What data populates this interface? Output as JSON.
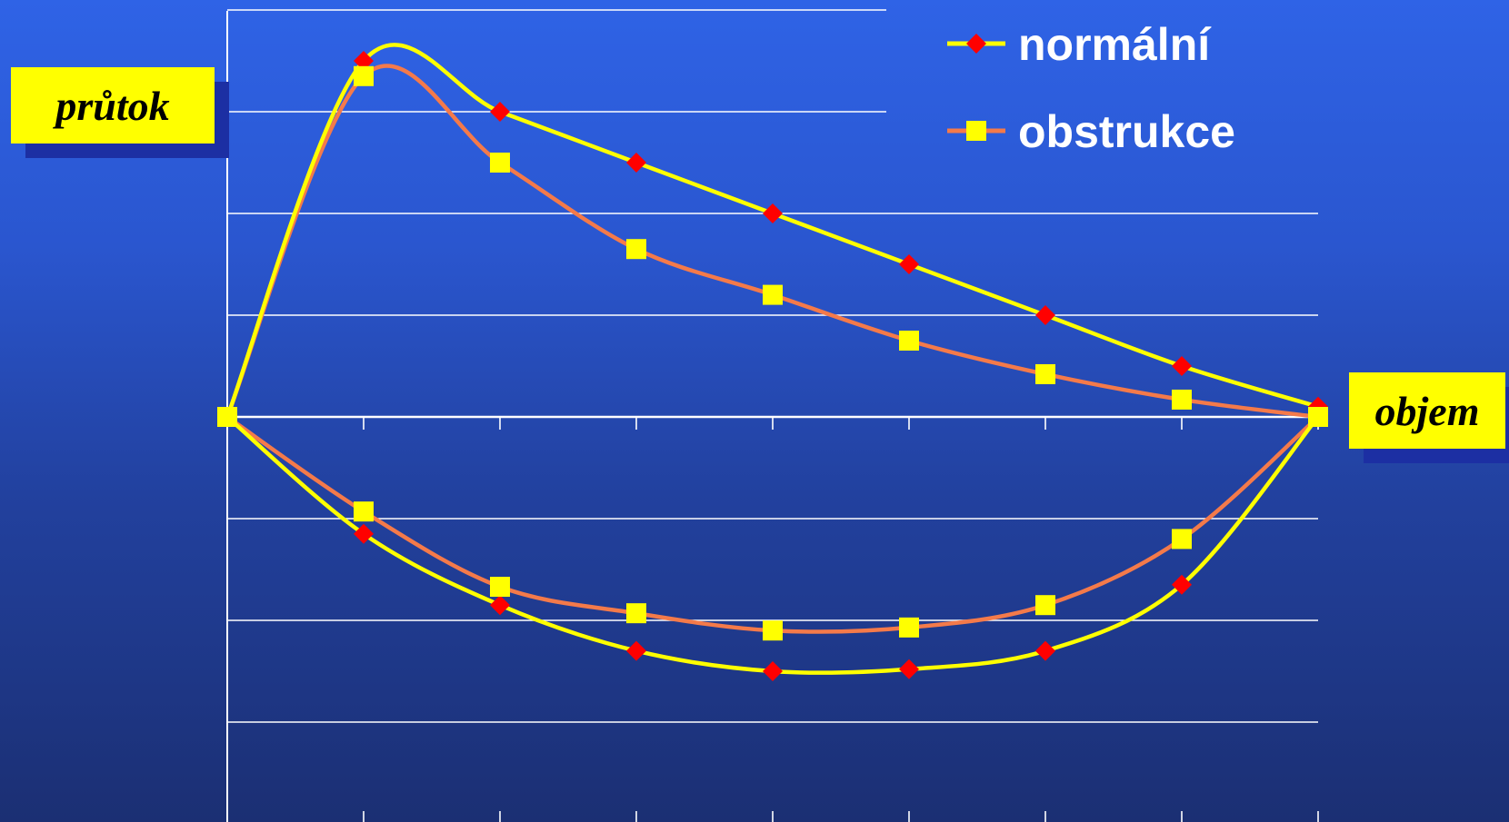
{
  "chart_data": {
    "type": "line",
    "xlabel": "objem",
    "ylabel": "průtok",
    "xlim": [
      0,
      8
    ],
    "ylim": [
      -4,
      4
    ],
    "grid": true,
    "legend": "top-right",
    "series": [
      {
        "name": "normální",
        "color": "#ffff00",
        "marker": "diamond",
        "marker_color": "#ff0000",
        "expiration": [
          [
            0,
            0
          ],
          [
            1,
            3.5
          ],
          [
            2,
            3.0
          ],
          [
            3,
            2.5
          ],
          [
            4,
            2.0
          ],
          [
            5,
            1.5
          ],
          [
            6,
            1.0
          ],
          [
            7,
            0.5
          ],
          [
            8,
            0.1
          ]
        ],
        "inspiration": [
          [
            0,
            0
          ],
          [
            1,
            -1.15
          ],
          [
            2,
            -1.85
          ],
          [
            3,
            -2.3
          ],
          [
            4,
            -2.5
          ],
          [
            5,
            -2.48
          ],
          [
            6,
            -2.3
          ],
          [
            7,
            -1.65
          ],
          [
            8,
            0
          ]
        ]
      },
      {
        "name": "obstrukce",
        "color": "#f47a4a",
        "marker": "square",
        "marker_color": "#ffff00",
        "expiration": [
          [
            0,
            0
          ],
          [
            1,
            3.35
          ],
          [
            2,
            2.5
          ],
          [
            3,
            1.65
          ],
          [
            4,
            1.2
          ],
          [
            5,
            0.75
          ],
          [
            6,
            0.42
          ],
          [
            7,
            0.17
          ],
          [
            8,
            0
          ]
        ],
        "inspiration": [
          [
            0,
            0
          ],
          [
            1,
            -0.93
          ],
          [
            2,
            -1.67
          ],
          [
            3,
            -1.93
          ],
          [
            4,
            -2.1
          ],
          [
            5,
            -2.07
          ],
          [
            6,
            -1.85
          ],
          [
            7,
            -1.2
          ],
          [
            8,
            0
          ]
        ]
      }
    ]
  }
}
